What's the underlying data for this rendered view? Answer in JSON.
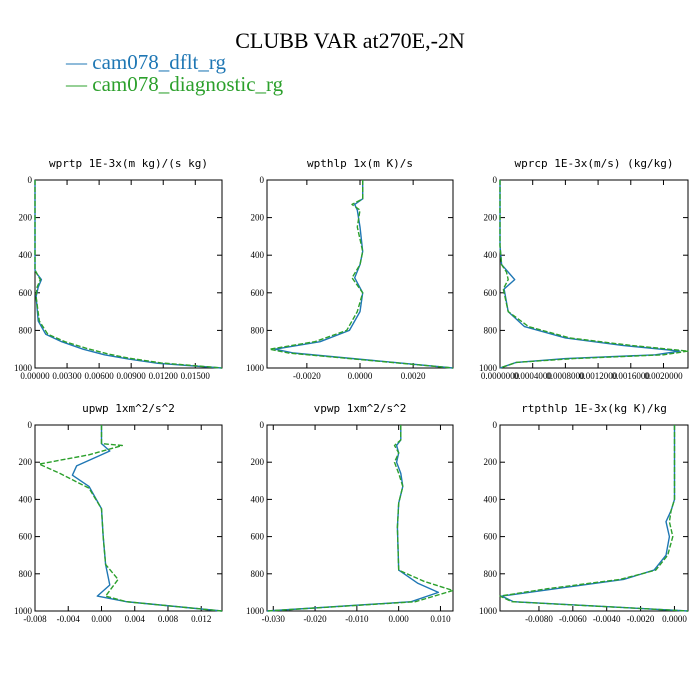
{
  "title": "CLUBB VAR at270E,-2N",
  "legend": [
    {
      "label": "— cam078_dflt_rg",
      "color": "#1f77b4"
    },
    {
      "label": "— cam078_diagnostic_rg",
      "color": "#2ca02c"
    }
  ],
  "chart_data": [
    {
      "type": "line",
      "title": "wprtp  1E-3x(m kg)/(s kg)",
      "xlim": [
        0,
        0.0175
      ],
      "ylim": [
        1000,
        0
      ],
      "xticks": [
        0,
        0.003,
        0.006,
        0.009,
        0.012,
        0.015
      ],
      "xtick_labels": [
        "0.00000",
        "0.00300",
        "0.00600",
        "0.00900",
        "0.01200",
        "0.01500"
      ],
      "yticks": [
        0,
        200,
        400,
        600,
        800,
        1000
      ],
      "ytick_labels": [
        "0",
        "200",
        "400",
        "600",
        "800",
        "1000"
      ],
      "series": [
        {
          "name": "cam078_dflt_rg",
          "x": [
            0,
            0,
            0.0002,
            0.0006,
            0.0003,
            0.0001,
            0.0003,
            0.001,
            0.0025,
            0.0045,
            0.0065,
            0.0085,
            0.0115,
            0.0175
          ],
          "y": [
            0,
            480,
            500,
            530,
            570,
            620,
            750,
            820,
            860,
            900,
            930,
            950,
            975,
            1000
          ]
        },
        {
          "name": "cam078_diagnostic_rg",
          "x": [
            0,
            0,
            0.0002,
            0.0005,
            0.0002,
            0.0001,
            0.0004,
            0.0012,
            0.0028,
            0.0048,
            0.0068,
            0.0088,
            0.0118,
            0.0175
          ],
          "y": [
            0,
            480,
            500,
            530,
            570,
            620,
            750,
            820,
            860,
            895,
            925,
            948,
            973,
            1000
          ]
        }
      ]
    },
    {
      "type": "line",
      "title": "wpthlp  1x(m K)/s",
      "xlim": [
        -0.0035,
        0.0035
      ],
      "ylim": [
        1000,
        0
      ],
      "xticks": [
        -0.002,
        0,
        0.002
      ],
      "xtick_labels": [
        "-0.0020",
        "0.0000",
        "0.0020"
      ],
      "yticks": [
        0,
        200,
        400,
        600,
        800,
        1000
      ],
      "ytick_labels": [
        "0",
        "200",
        "400",
        "600",
        "800",
        "1000"
      ],
      "series": [
        {
          "name": "cam078_dflt_rg",
          "x": [
            0.0001,
            0.0001,
            -0.0002,
            -0.0001,
            0,
            0.0001,
            0,
            -0.0002,
            0.0001,
            0,
            -0.0004,
            -0.0015,
            -0.0032,
            -0.0025,
            0.0005,
            0.0035
          ],
          "y": [
            0,
            100,
            130,
            160,
            250,
            380,
            450,
            520,
            600,
            700,
            800,
            860,
            900,
            920,
            960,
            1000
          ]
        },
        {
          "name": "cam078_diagnostic_rg",
          "x": [
            0.0001,
            0.0001,
            -0.0003,
            0,
            -0.0001,
            0.0001,
            0,
            -0.0003,
            0.0001,
            -0.0001,
            -0.0005,
            -0.0017,
            -0.0034,
            -0.0027,
            0.0004,
            0.0035
          ],
          "y": [
            0,
            100,
            130,
            160,
            250,
            380,
            450,
            520,
            600,
            700,
            800,
            860,
            900,
            920,
            960,
            1000
          ]
        }
      ]
    },
    {
      "type": "line",
      "title": "wprcp  1E-3x(m/s) (kg/kg)",
      "xlim": [
        0,
        0.0023
      ],
      "ylim": [
        1000,
        0
      ],
      "xticks": [
        0,
        0.0004,
        0.0008,
        0.0012,
        0.0016,
        0.002
      ],
      "xtick_labels": [
        "0.0000000",
        "0.0004000",
        "0.0008000",
        "0.0012000",
        "0.0016000",
        "0.0020000"
      ],
      "yticks": [
        0,
        200,
        400,
        600,
        800,
        1000
      ],
      "ytick_labels": [
        "0",
        "200",
        "400",
        "600",
        "800",
        "1000"
      ],
      "series": [
        {
          "name": "cam078_dflt_rg",
          "x": [
            0,
            0,
            2e-05,
            0.0001,
            0.00018,
            5e-05,
            0.0001,
            0.0003,
            0.0008,
            0.0015,
            0.0022,
            0.0019,
            0.0008,
            0.0002,
            0
          ],
          "y": [
            0,
            350,
            450,
            490,
            530,
            580,
            700,
            780,
            840,
            880,
            910,
            930,
            950,
            970,
            1000
          ]
        },
        {
          "name": "cam078_diagnostic_rg",
          "x": [
            0,
            0,
            2e-05,
            8e-05,
            0.0001,
            4e-05,
            0.0001,
            0.00035,
            0.00085,
            0.0016,
            0.0023,
            0.002,
            0.0009,
            0.0002,
            0
          ],
          "y": [
            0,
            350,
            450,
            490,
            530,
            580,
            700,
            780,
            840,
            880,
            910,
            930,
            950,
            970,
            1000
          ]
        }
      ]
    },
    {
      "type": "line",
      "title": "upwp  1xm^2/s^2",
      "xlim": [
        -0.008,
        0.0145
      ],
      "ylim": [
        1000,
        0
      ],
      "xticks": [
        -0.008,
        -0.004,
        0,
        0.004,
        0.008,
        0.012
      ],
      "xtick_labels": [
        "-0.008",
        "-0.004",
        "0.000",
        "0.004",
        "0.008",
        "0.012"
      ],
      "yticks": [
        0,
        200,
        400,
        600,
        800,
        1000
      ],
      "ytick_labels": [
        "0",
        "200",
        "400",
        "600",
        "800",
        "1000"
      ],
      "series": [
        {
          "name": "cam078_dflt_rg",
          "x": [
            0,
            0,
            0.001,
            -0.0005,
            -0.003,
            -0.0035,
            -0.0015,
            0,
            0.0002,
            0.0005,
            0.001,
            -0.0005,
            0.003,
            0.0145
          ],
          "y": [
            0,
            100,
            140,
            170,
            220,
            270,
            330,
            450,
            600,
            750,
            860,
            920,
            950,
            1000
          ]
        },
        {
          "name": "cam078_diagnostic_rg",
          "x": [
            0,
            0,
            0.0025,
            -0.0015,
            -0.0075,
            -0.005,
            -0.0015,
            0,
            0.0002,
            0.0005,
            0.002,
            0.0005,
            0.003,
            0.0145
          ],
          "y": [
            0,
            100,
            110,
            160,
            210,
            260,
            340,
            450,
            600,
            750,
            830,
            920,
            950,
            1000
          ]
        }
      ]
    },
    {
      "type": "line",
      "title": "vpwp  1xm^2/s^2",
      "xlim": [
        -0.0315,
        0.013
      ],
      "ylim": [
        1000,
        0
      ],
      "xticks": [
        -0.03,
        -0.02,
        -0.01,
        0,
        0.01
      ],
      "xtick_labels": [
        "-0.030",
        "-0.020",
        "-0.010",
        "0.000",
        "0.010"
      ],
      "yticks": [
        0,
        200,
        400,
        600,
        800,
        1000
      ],
      "ytick_labels": [
        "0",
        "200",
        "400",
        "600",
        "800",
        "1000"
      ],
      "series": [
        {
          "name": "cam078_dflt_rg",
          "x": [
            0.0005,
            0.0005,
            -0.0005,
            0,
            -0.0005,
            0.0005,
            0.001,
            0,
            -0.0003,
            0,
            0.0045,
            0.0095,
            0.003,
            -0.0315
          ],
          "y": [
            0,
            80,
            110,
            150,
            200,
            260,
            330,
            420,
            550,
            780,
            850,
            900,
            950,
            1000
          ]
        },
        {
          "name": "cam078_diagnostic_rg",
          "x": [
            0.0005,
            0.0005,
            -0.001,
            0,
            -0.001,
            0,
            0.001,
            0,
            -0.0003,
            0,
            0.006,
            0.013,
            0.004,
            -0.0315
          ],
          "y": [
            0,
            80,
            110,
            150,
            200,
            260,
            330,
            420,
            550,
            780,
            840,
            890,
            950,
            1000
          ]
        }
      ]
    },
    {
      "type": "line",
      "title": "rtpthlp  1E-3x(kg K)/kg",
      "xlim": [
        -0.0103,
        0.0008
      ],
      "ylim": [
        1000,
        0
      ],
      "xticks": [
        -0.008,
        -0.006,
        -0.004,
        -0.002,
        0
      ],
      "xtick_labels": [
        "-0.0080",
        "-0.0060",
        "-0.0040",
        "-0.0020",
        "0.0000"
      ],
      "yticks": [
        0,
        200,
        400,
        600,
        800,
        1000
      ],
      "ytick_labels": [
        "0",
        "200",
        "400",
        "600",
        "800",
        "1000"
      ],
      "series": [
        {
          "name": "cam078_dflt_rg",
          "x": [
            0,
            0,
            -0.0002,
            -0.0005,
            -0.0003,
            -0.0005,
            -0.0012,
            -0.003,
            -0.007,
            -0.0102,
            -0.0095,
            0.0008
          ],
          "y": [
            0,
            400,
            460,
            520,
            600,
            700,
            780,
            830,
            880,
            920,
            950,
            1000
          ]
        },
        {
          "name": "cam078_diagnostic_rg",
          "x": [
            0,
            0,
            -0.0002,
            -0.0003,
            -0.0001,
            -0.0004,
            -0.0011,
            -0.0032,
            -0.0075,
            -0.0103,
            -0.0096,
            0.0008
          ],
          "y": [
            0,
            400,
            460,
            520,
            600,
            700,
            780,
            830,
            880,
            920,
            950,
            1000
          ]
        }
      ]
    }
  ]
}
